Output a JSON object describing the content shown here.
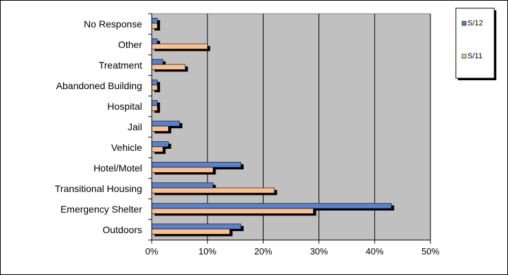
{
  "chart_data": {
    "type": "bar",
    "orientation": "horizontal",
    "categories": [
      "No Response",
      "Other",
      "Treatment",
      "Abandoned Building",
      "Hospital",
      "Jail",
      "Vehicle",
      "Hotel/Motel",
      "Transitional Housing",
      "Emergency Shelter",
      "Outdoors"
    ],
    "series": [
      {
        "name": "S/12",
        "color": "#5b80cc",
        "values": [
          1,
          1,
          2,
          1,
          1,
          5,
          3,
          16,
          11,
          43,
          16
        ]
      },
      {
        "name": "S/11",
        "color": "#fac090",
        "values": [
          1,
          10,
          6,
          1,
          1,
          3,
          2,
          11,
          22,
          29,
          14
        ]
      }
    ],
    "xlim": [
      0,
      50
    ],
    "xticks": [
      "0%",
      "10%",
      "20%",
      "30%",
      "40%",
      "50%"
    ],
    "plot_background": "#c0c0c0",
    "grid": "vertical",
    "shadow_color": "#000000",
    "legend_position": "top-right"
  }
}
